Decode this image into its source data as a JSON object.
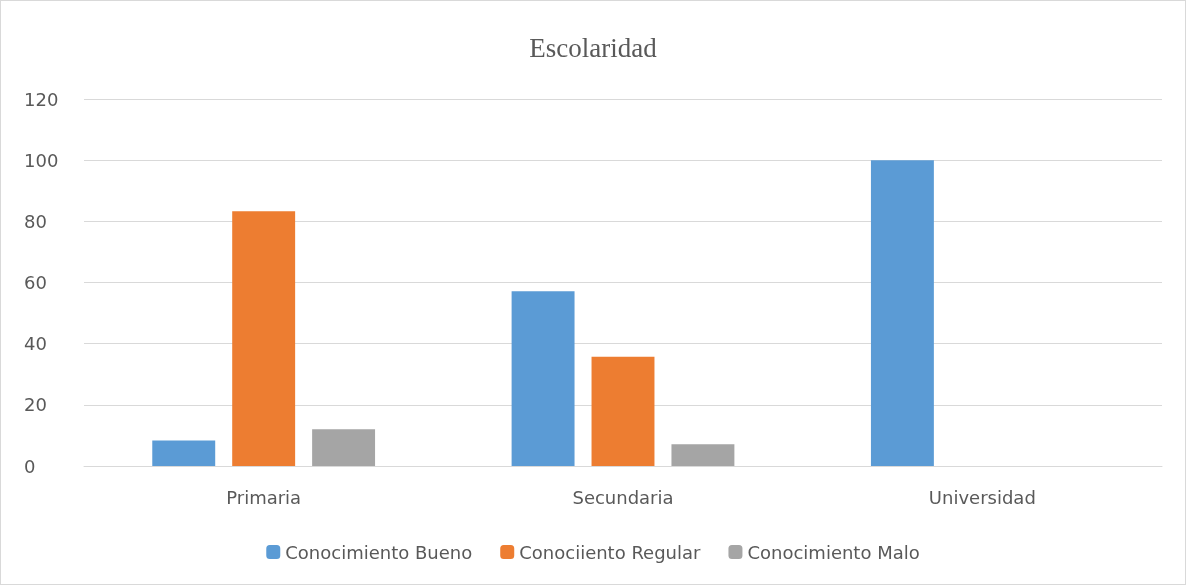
{
  "chart_data": {
    "type": "bar",
    "title": "Escolaridad",
    "categories": [
      "Primaria",
      "Secundaria",
      "Universidad"
    ],
    "series": [
      {
        "name": "Conocimiento Bueno",
        "color": "#5b9bd5",
        "values": [
          8.3,
          57.1,
          100
        ]
      },
      {
        "name": "Conociiento Regular",
        "color": "#ed7d31",
        "values": [
          83.3,
          35.7,
          0
        ]
      },
      {
        "name": "Conocimiento Malo",
        "color": "#a5a5a5",
        "values": [
          12,
          7.1,
          0
        ]
      }
    ],
    "ylim": [
      0,
      120
    ],
    "yticks": [
      0,
      20,
      40,
      60,
      80,
      100,
      120
    ],
    "grid": "y",
    "legend": "bottom"
  }
}
